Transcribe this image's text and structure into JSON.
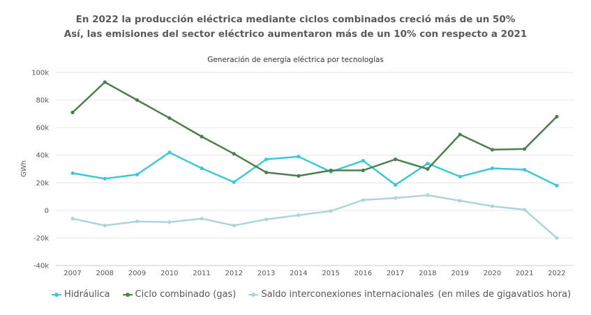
{
  "header": {
    "line1": "En 2022 la producción eléctrica mediante ciclos combinados creció más de un 50%",
    "line2": "Así, las emisiones del sector eléctrico aumentaron más de un 10% con respecto a 2021"
  },
  "legend_note": "(en miles de gigavatios hora)",
  "chart_data": {
    "type": "line",
    "title": "Generación de energía eléctrica por tecnologías",
    "xlabel": "",
    "ylabel": "GWh",
    "x": [
      "2007",
      "2008",
      "2009",
      "2010",
      "2011",
      "2012",
      "2013",
      "2014",
      "2015",
      "2016",
      "2017",
      "2018",
      "2019",
      "2020",
      "2021",
      "2022"
    ],
    "ylim": [
      -40000,
      100000
    ],
    "yticks": [
      -40000,
      -20000,
      0,
      20000,
      40000,
      60000,
      80000,
      100000
    ],
    "ytick_labels": [
      "-40k",
      "-20k",
      "0",
      "20k",
      "40k",
      "60k",
      "80k",
      "100k"
    ],
    "grid": true,
    "legend": "bottom",
    "series": [
      {
        "name": "Hidráulica",
        "color": "#3cc8d6",
        "values": [
          27000,
          23000,
          26000,
          42000,
          30500,
          20500,
          37000,
          39000,
          28000,
          36000,
          18500,
          34000,
          24500,
          30500,
          29500,
          18000
        ]
      },
      {
        "name": "Ciclo combinado (gas)",
        "color": "#4e7d4e",
        "values": [
          71000,
          93000,
          80000,
          67000,
          53500,
          41000,
          27500,
          25000,
          29000,
          29000,
          37000,
          30000,
          55000,
          44000,
          44500,
          68000
        ]
      },
      {
        "name": "Saldo interconexiones internacionales",
        "color": "#acd5d9",
        "values": [
          -6000,
          -11000,
          -8000,
          -8500,
          -6000,
          -11000,
          -6500,
          -3500,
          -500,
          7500,
          9000,
          11000,
          7000,
          3000,
          500,
          -20000
        ]
      }
    ]
  }
}
